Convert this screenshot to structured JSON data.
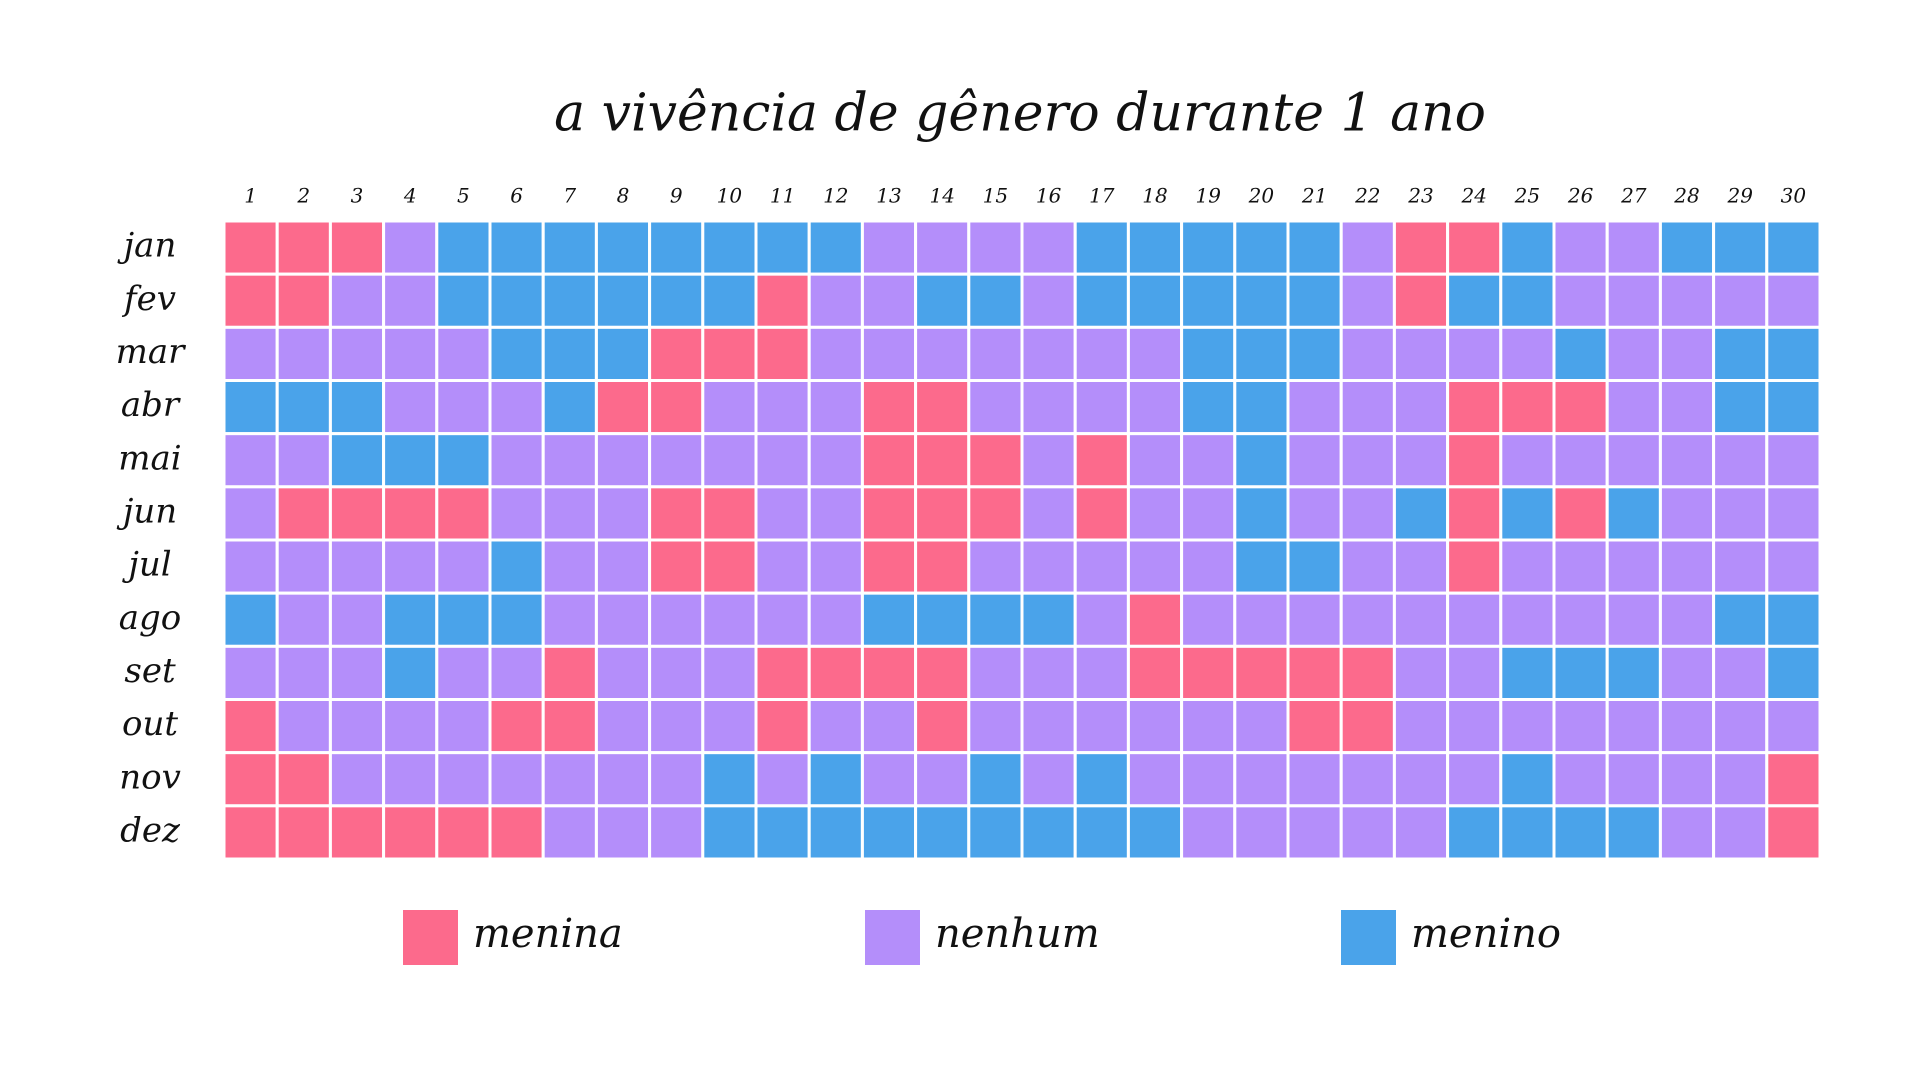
{
  "chart_data": {
    "type": "heatmap",
    "title": "a vivência de gênero durante 1 ano",
    "days": [
      1,
      2,
      3,
      4,
      5,
      6,
      7,
      8,
      9,
      10,
      11,
      12,
      13,
      14,
      15,
      16,
      17,
      18,
      19,
      20,
      21,
      22,
      23,
      24,
      25,
      26,
      27,
      28,
      29,
      30
    ],
    "months": [
      "jan",
      "fev",
      "mar",
      "abr",
      "mai",
      "jun",
      "jul",
      "ago",
      "set",
      "out",
      "nov",
      "dez"
    ],
    "legend": [
      {
        "name": "menina",
        "color": "#fc6a8c"
      },
      {
        "name": "nenhum",
        "color": "#b48efa"
      },
      {
        "name": "menino",
        "color": "#4aa3ea"
      }
    ],
    "values": [
      [
        0,
        0,
        0,
        1,
        2,
        2,
        2,
        2,
        2,
        2,
        2,
        2,
        1,
        1,
        1,
        1,
        2,
        2,
        2,
        2,
        2,
        1,
        0,
        0,
        2,
        1,
        1,
        2,
        2,
        2
      ],
      [
        0,
        0,
        1,
        1,
        2,
        2,
        2,
        2,
        2,
        2,
        0,
        1,
        1,
        2,
        2,
        1,
        2,
        2,
        2,
        2,
        2,
        1,
        0,
        2,
        2,
        1,
        1,
        1,
        1,
        1
      ],
      [
        1,
        1,
        1,
        1,
        1,
        2,
        2,
        2,
        0,
        0,
        0,
        1,
        1,
        1,
        1,
        1,
        1,
        1,
        2,
        2,
        2,
        1,
        1,
        1,
        1,
        2,
        1,
        1,
        2,
        2
      ],
      [
        2,
        2,
        2,
        1,
        1,
        1,
        2,
        0,
        0,
        1,
        1,
        1,
        0,
        0,
        1,
        1,
        1,
        1,
        2,
        2,
        1,
        1,
        1,
        0,
        0,
        0,
        1,
        1,
        2,
        2
      ],
      [
        1,
        1,
        2,
        2,
        2,
        1,
        1,
        1,
        1,
        1,
        1,
        1,
        0,
        0,
        0,
        1,
        0,
        1,
        1,
        2,
        1,
        1,
        1,
        0,
        1,
        1,
        1,
        1,
        1,
        1
      ],
      [
        1,
        0,
        0,
        0,
        0,
        1,
        1,
        1,
        0,
        0,
        1,
        1,
        0,
        0,
        0,
        1,
        0,
        1,
        1,
        2,
        1,
        1,
        2,
        0,
        2,
        0,
        2,
        1,
        1,
        1
      ],
      [
        1,
        1,
        1,
        1,
        1,
        2,
        1,
        1,
        0,
        0,
        1,
        1,
        0,
        0,
        1,
        1,
        1,
        1,
        1,
        2,
        2,
        1,
        1,
        0,
        1,
        1,
        1,
        1,
        1,
        1
      ],
      [
        2,
        1,
        1,
        2,
        2,
        2,
        1,
        1,
        1,
        1,
        1,
        1,
        2,
        2,
        2,
        2,
        1,
        0,
        1,
        1,
        1,
        1,
        1,
        1,
        1,
        1,
        1,
        1,
        2,
        2
      ],
      [
        1,
        1,
        1,
        2,
        1,
        1,
        0,
        1,
        1,
        1,
        0,
        0,
        0,
        0,
        1,
        1,
        1,
        0,
        0,
        0,
        0,
        0,
        1,
        1,
        2,
        2,
        2,
        1,
        1,
        2
      ],
      [
        0,
        1,
        1,
        1,
        1,
        0,
        0,
        1,
        1,
        1,
        0,
        1,
        1,
        0,
        1,
        1,
        1,
        1,
        1,
        1,
        0,
        0,
        1,
        1,
        1,
        1,
        1,
        1,
        1,
        1
      ],
      [
        0,
        0,
        1,
        1,
        1,
        1,
        1,
        1,
        1,
        2,
        1,
        2,
        1,
        1,
        2,
        1,
        2,
        1,
        1,
        1,
        1,
        1,
        1,
        1,
        2,
        1,
        1,
        1,
        1,
        0
      ],
      [
        0,
        0,
        0,
        0,
        0,
        0,
        1,
        1,
        1,
        2,
        2,
        2,
        2,
        2,
        2,
        2,
        2,
        2,
        1,
        1,
        1,
        1,
        1,
        2,
        2,
        2,
        2,
        1,
        1,
        0
      ]
    ]
  }
}
